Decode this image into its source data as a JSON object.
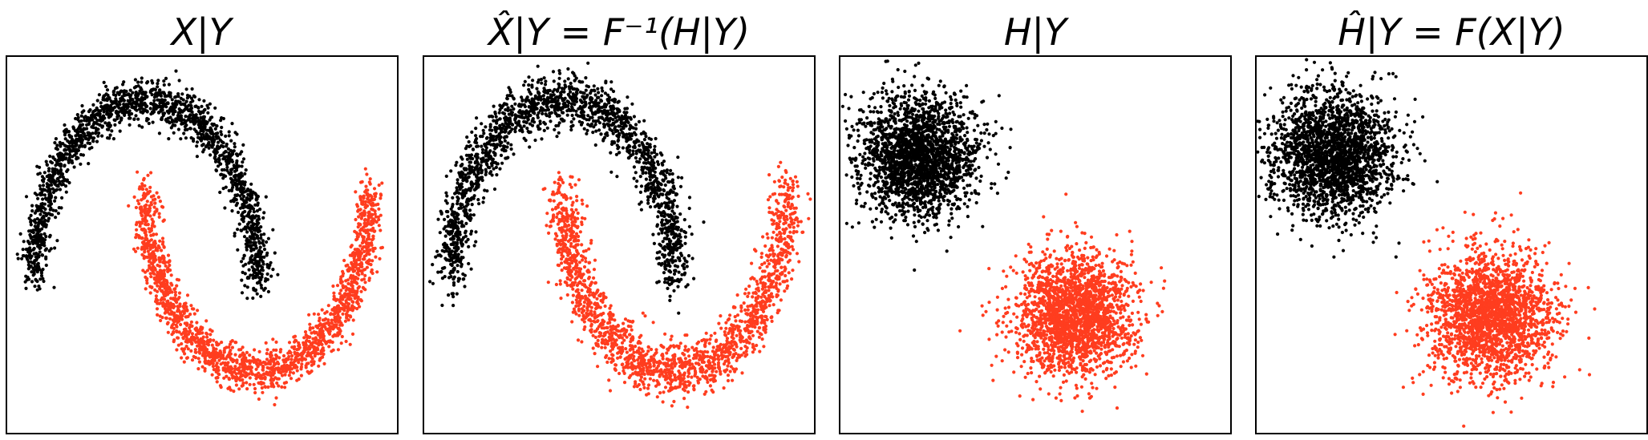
{
  "colors": {
    "class0": "#000000",
    "class1": "#ff3d1f",
    "frame": "#000000",
    "background": "#ffffff"
  },
  "chart_data": [
    {
      "type": "scatter",
      "title": "X|Y",
      "xlim": [
        -1.25,
        2.25
      ],
      "ylim": [
        -0.85,
        1.25
      ],
      "grid": false,
      "legend": "none",
      "series": [
        {
          "color": "#000000",
          "shape": "moon",
          "n": 1800,
          "center": [
            0.0,
            0.0
          ],
          "radius": 1.0,
          "angle_range_deg": [
            0,
            180
          ],
          "noise": 0.06
        },
        {
          "color": "#ff3d1f",
          "shape": "moon",
          "n": 1800,
          "center": [
            1.0,
            0.5
          ],
          "radius": 1.0,
          "angle_range_deg": [
            180,
            360
          ],
          "noise": 0.06
        }
      ]
    },
    {
      "type": "scatter",
      "title": "X̂|Y = F⁻¹(H|Y)",
      "xlim": [
        -1.25,
        2.25
      ],
      "ylim": [
        -0.85,
        1.25
      ],
      "grid": false,
      "legend": "none",
      "series": [
        {
          "color": "#000000",
          "shape": "moon",
          "n": 1800,
          "center": [
            0.0,
            0.0
          ],
          "radius": 1.0,
          "angle_range_deg": [
            0,
            180
          ],
          "noise": 0.075
        },
        {
          "color": "#ff3d1f",
          "shape": "moon",
          "n": 1800,
          "center": [
            1.0,
            0.5
          ],
          "radius": 1.0,
          "angle_range_deg": [
            180,
            360
          ],
          "noise": 0.075
        }
      ]
    },
    {
      "type": "scatter",
      "title": "H|Y",
      "xlim": [
        -4.0,
        6.0
      ],
      "ylim": [
        -5.0,
        4.5
      ],
      "grid": false,
      "legend": "none",
      "series": [
        {
          "color": "#000000",
          "shape": "gaussian",
          "n": 2200,
          "mean": [
            -2.0,
            2.0
          ],
          "std": 0.75
        },
        {
          "color": "#ff3d1f",
          "shape": "gaussian",
          "n": 2200,
          "mean": [
            2.0,
            -2.0
          ],
          "std": 0.75
        }
      ]
    },
    {
      "type": "scatter",
      "title": "Ĥ|Y = F(X|Y)",
      "xlim": [
        -4.0,
        6.0
      ],
      "ylim": [
        -5.0,
        4.5
      ],
      "grid": false,
      "legend": "none",
      "series": [
        {
          "color": "#000000",
          "shape": "gaussian",
          "n": 2200,
          "mean": [
            -2.0,
            2.0
          ],
          "std": 0.78
        },
        {
          "color": "#ff3d1f",
          "shape": "gaussian",
          "n": 2200,
          "mean": [
            2.0,
            -2.0
          ],
          "std": 0.8
        }
      ]
    }
  ]
}
